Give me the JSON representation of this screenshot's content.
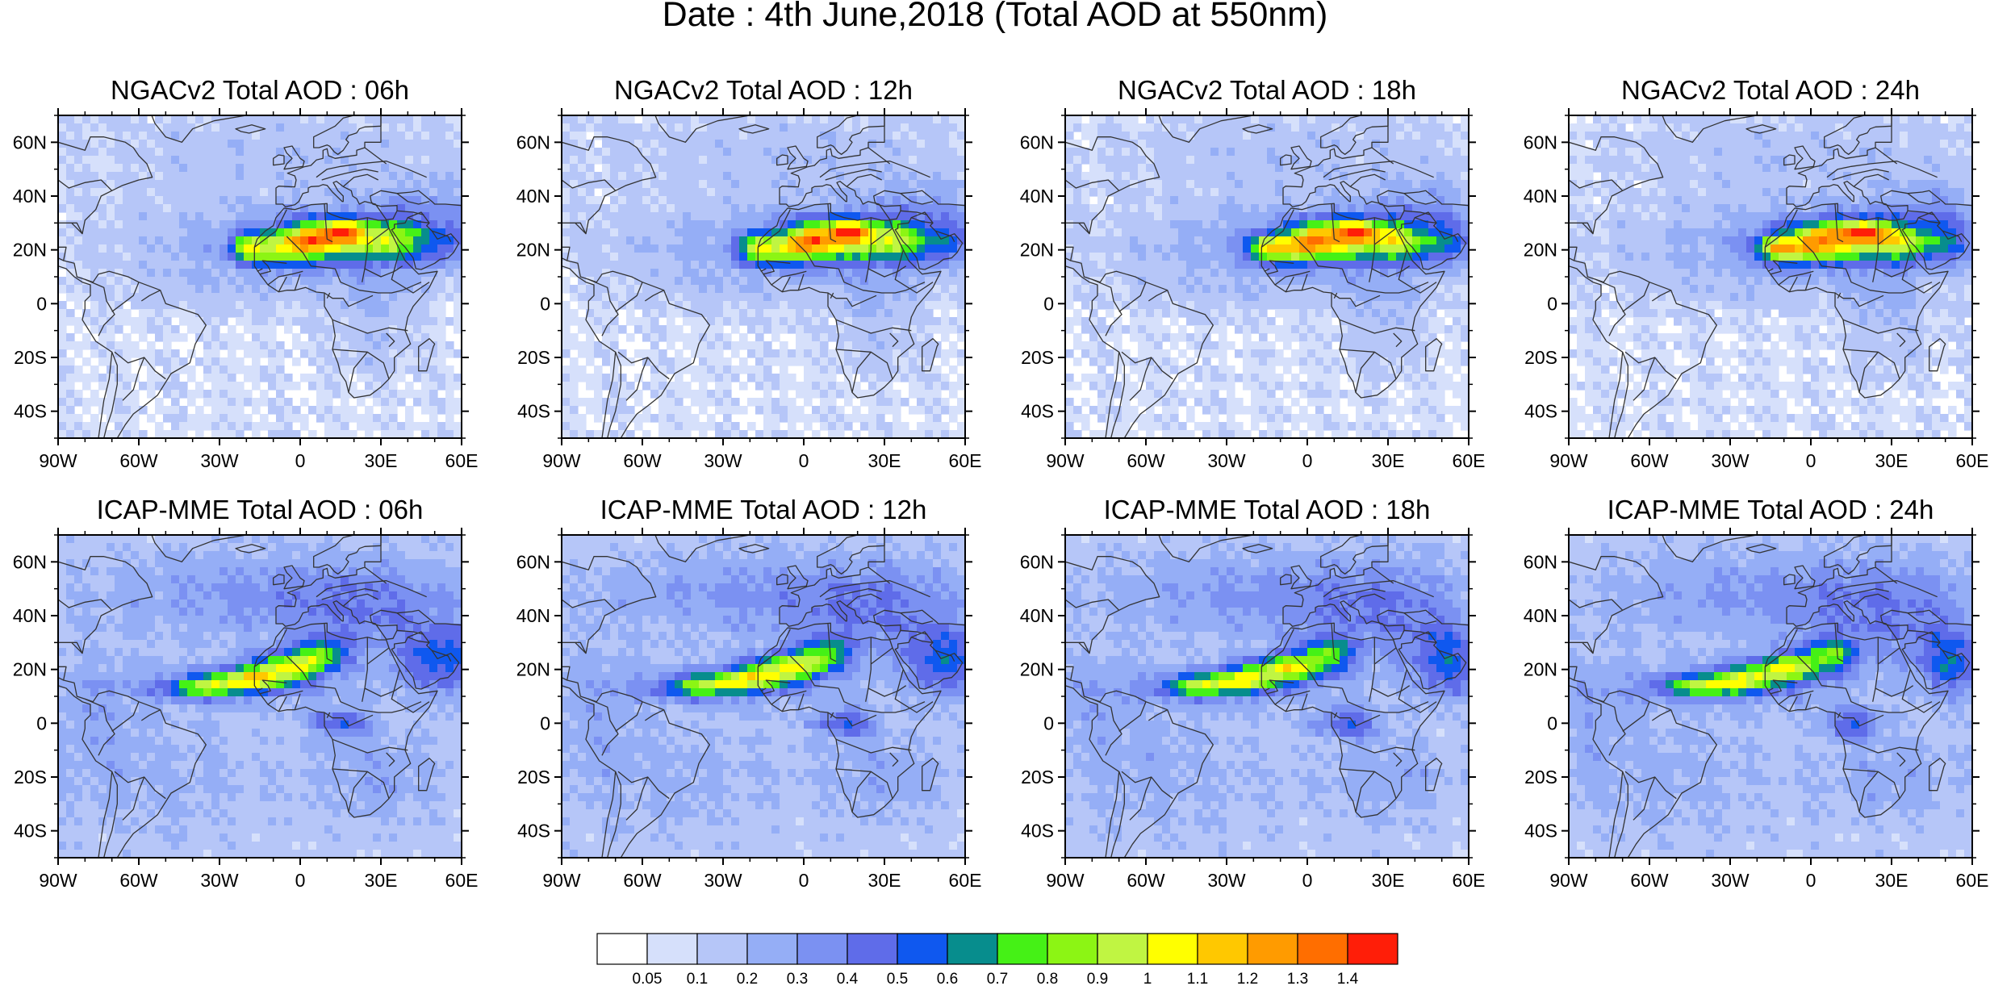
{
  "figure": {
    "title": "Date : 4th June,2018 (Total AOD at 550nm)"
  },
  "panels": [
    {
      "title": "NGACv2 Total AOD : 06h",
      "model": "ngac",
      "shift": 0
    },
    {
      "title": "NGACv2 Total AOD : 12h",
      "model": "ngac",
      "shift": 1
    },
    {
      "title": "NGACv2 Total AOD : 18h",
      "model": "ngac",
      "shift": 2
    },
    {
      "title": "NGACv2 Total AOD : 24h",
      "model": "ngac",
      "shift": 3
    },
    {
      "title": "ICAP-MME Total AOD : 06h",
      "model": "icap",
      "shift": 0
    },
    {
      "title": "ICAP-MME Total AOD : 12h",
      "model": "icap",
      "shift": 1
    },
    {
      "title": "ICAP-MME Total AOD : 18h",
      "model": "icap",
      "shift": 2
    },
    {
      "title": "ICAP-MME Total AOD : 24h",
      "model": "icap",
      "shift": 3
    }
  ],
  "axes": {
    "lon_range": [
      -90,
      60
    ],
    "lat_range": [
      -50,
      70
    ],
    "x_ticks": [
      {
        "value": -90,
        "label": "90W"
      },
      {
        "value": -60,
        "label": "60W"
      },
      {
        "value": -30,
        "label": "30W"
      },
      {
        "value": 0,
        "label": "0"
      },
      {
        "value": 30,
        "label": "30E"
      },
      {
        "value": 60,
        "label": "60E"
      }
    ],
    "y_ticks": [
      {
        "value": 60,
        "label": "60N"
      },
      {
        "value": 40,
        "label": "40N"
      },
      {
        "value": 20,
        "label": "20N"
      },
      {
        "value": 0,
        "label": "0"
      },
      {
        "value": -20,
        "label": "20S"
      },
      {
        "value": -40,
        "label": "40S"
      }
    ]
  },
  "colorbar": {
    "colors": [
      "#ffffff",
      "#d6e0fb",
      "#b6c6f8",
      "#95aef6",
      "#7b91f2",
      "#5f6ce9",
      "#0f58ef",
      "#078d8d",
      "#45f116",
      "#8cf514",
      "#c0f542",
      "#ffff00",
      "#ffc800",
      "#ff9b00",
      "#ff6e00",
      "#ff1e08"
    ],
    "labels": [
      "0.05",
      "0.1",
      "0.2",
      "0.3",
      "0.4",
      "0.5",
      "0.6",
      "0.7",
      "0.8",
      "0.9",
      "1",
      "1.1",
      "1.2",
      "1.3",
      "1.4"
    ]
  }
}
